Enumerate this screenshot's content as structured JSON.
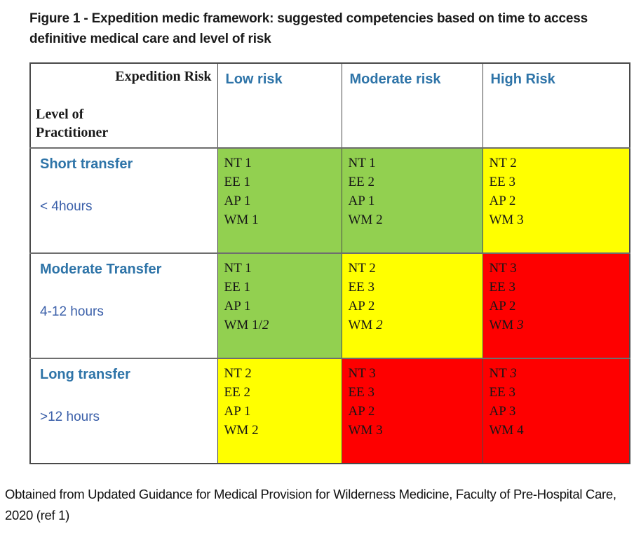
{
  "figure": {
    "title": "Figure 1 - Expedition medic framework: suggested competencies based on time to access definitive medical care and level of risk"
  },
  "table": {
    "corner": {
      "top_right": "Expedition Risk",
      "bottom_left": "Level of Practitioner"
    },
    "columns": [
      "Low risk",
      "Moderate risk",
      "High Risk"
    ],
    "rows": [
      {
        "label": "Short transfer",
        "sublabel": "< 4hours",
        "cells": [
          {
            "risk": "green",
            "lines": [
              {
                "text": "NT 1"
              },
              {
                "text": "EE 1"
              },
              {
                "text": "AP 1"
              },
              {
                "text": "WM 1"
              }
            ]
          },
          {
            "risk": "green",
            "lines": [
              {
                "text": "NT 1"
              },
              {
                "text": "EE 2"
              },
              {
                "text": "AP 1"
              },
              {
                "text": "WM 2"
              }
            ]
          },
          {
            "risk": "yellow",
            "lines": [
              {
                "text": "NT 2"
              },
              {
                "text": "EE 3"
              },
              {
                "text": "AP 2"
              },
              {
                "text": "WM 3"
              }
            ]
          }
        ]
      },
      {
        "label": "Moderate Transfer",
        "sublabel": "4-12 hours",
        "cells": [
          {
            "risk": "green",
            "lines": [
              {
                "text": "NT 1"
              },
              {
                "text": "EE 1"
              },
              {
                "text": "AP 1"
              },
              {
                "text": "WM 1/",
                "italic": "2"
              }
            ]
          },
          {
            "risk": "yellow",
            "lines": [
              {
                "text": "NT 2"
              },
              {
                "text": "EE 3"
              },
              {
                "text": "AP 2"
              },
              {
                "text": "WM ",
                "italic": "2"
              }
            ]
          },
          {
            "risk": "red",
            "lines": [
              {
                "text": "NT 3"
              },
              {
                "text": "EE 3"
              },
              {
                "text": "AP 2"
              },
              {
                "text": "WM ",
                "italic": "3"
              }
            ]
          }
        ]
      },
      {
        "label": "Long transfer",
        "sublabel": ">12 hours",
        "cells": [
          {
            "risk": "yellow",
            "lines": [
              {
                "text": "NT 2"
              },
              {
                "text": "EE 2"
              },
              {
                "text": "AP 1"
              },
              {
                "text": "WM 2"
              }
            ]
          },
          {
            "risk": "red",
            "lines": [
              {
                "text": "NT 3"
              },
              {
                "text": "EE 3"
              },
              {
                "text": "AP 2"
              },
              {
                "text": "WM 3"
              }
            ]
          },
          {
            "risk": "red",
            "lines": [
              {
                "text": "NT ",
                "italic": "3"
              },
              {
                "text": "EE 3"
              },
              {
                "text": "AP 3"
              },
              {
                "text": "WM 4"
              }
            ]
          }
        ]
      }
    ],
    "risk_colors": {
      "green": "#92D050",
      "yellow": "#FFFF00",
      "red": "#FE0000"
    },
    "header_text_color": "#2E74A8"
  },
  "footer": {
    "text": "Obtained from Updated Guidance for Medical Provision for Wilderness Medicine, Faculty of Pre-Hospital Care, 2020 (ref 1)"
  }
}
